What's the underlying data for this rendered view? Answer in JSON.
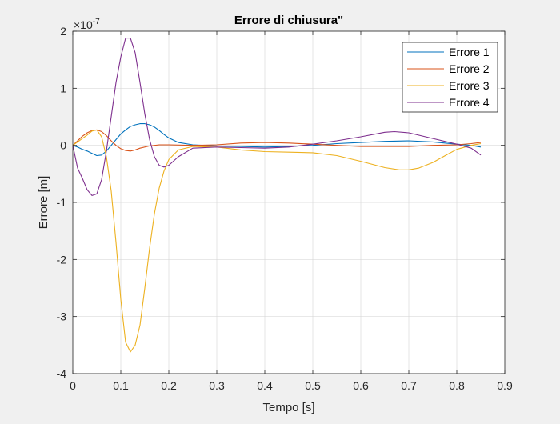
{
  "chart_data": {
    "type": "line",
    "title": "Errore di chiusura\"",
    "xlabel": "Tempo [s]",
    "ylabel": "Errore [m]",
    "exponent_label": "×10",
    "exponent_power": "-7",
    "xlim": [
      0,
      0.9
    ],
    "ylim": [
      -4,
      2
    ],
    "x_ticks": [
      0,
      0.1,
      0.2,
      0.3,
      0.4,
      0.5,
      0.6,
      0.7,
      0.8,
      0.9
    ],
    "x_tick_labels": [
      "0",
      "0.1",
      "0.2",
      "0.3",
      "0.4",
      "0.5",
      "0.6",
      "0.7",
      "0.8",
      "0.9"
    ],
    "y_ticks": [
      -4,
      -3,
      -2,
      -1,
      0,
      1,
      2
    ],
    "y_tick_labels": [
      "-4",
      "-3",
      "-2",
      "-1",
      "0",
      "1",
      "2"
    ],
    "grid": true,
    "legend_position": "top-right",
    "series": [
      {
        "name": "Errore 1",
        "color": "#0072BD",
        "points": [
          [
            0,
            0
          ],
          [
            0.01,
            -0.03
          ],
          [
            0.02,
            -0.07
          ],
          [
            0.03,
            -0.1
          ],
          [
            0.04,
            -0.14
          ],
          [
            0.05,
            -0.18
          ],
          [
            0.06,
            -0.17
          ],
          [
            0.07,
            -0.1
          ],
          [
            0.08,
            0
          ],
          [
            0.09,
            0.1
          ],
          [
            0.1,
            0.2
          ],
          [
            0.11,
            0.27
          ],
          [
            0.12,
            0.33
          ],
          [
            0.13,
            0.36
          ],
          [
            0.14,
            0.38
          ],
          [
            0.15,
            0.38
          ],
          [
            0.16,
            0.36
          ],
          [
            0.17,
            0.32
          ],
          [
            0.18,
            0.26
          ],
          [
            0.19,
            0.19
          ],
          [
            0.2,
            0.13
          ],
          [
            0.22,
            0.05
          ],
          [
            0.25,
            0.01
          ],
          [
            0.3,
            -0.01
          ],
          [
            0.35,
            -0.02
          ],
          [
            0.4,
            -0.03
          ],
          [
            0.45,
            -0.02
          ],
          [
            0.5,
            0
          ],
          [
            0.55,
            0.03
          ],
          [
            0.6,
            0.05
          ],
          [
            0.65,
            0.07
          ],
          [
            0.7,
            0.08
          ],
          [
            0.75,
            0.06
          ],
          [
            0.8,
            0.02
          ],
          [
            0.83,
            0
          ],
          [
            0.85,
            -0.03
          ]
        ]
      },
      {
        "name": "Errore 2",
        "color": "#D95319",
        "points": [
          [
            0,
            0
          ],
          [
            0.01,
            0.08
          ],
          [
            0.02,
            0.16
          ],
          [
            0.03,
            0.22
          ],
          [
            0.04,
            0.26
          ],
          [
            0.05,
            0.27
          ],
          [
            0.06,
            0.24
          ],
          [
            0.07,
            0.17
          ],
          [
            0.08,
            0.08
          ],
          [
            0.09,
            0
          ],
          [
            0.1,
            -0.06
          ],
          [
            0.11,
            -0.09
          ],
          [
            0.12,
            -0.1
          ],
          [
            0.13,
            -0.08
          ],
          [
            0.14,
            -0.05
          ],
          [
            0.16,
            -0.01
          ],
          [
            0.18,
            0.01
          ],
          [
            0.2,
            0.01
          ],
          [
            0.25,
            0
          ],
          [
            0.3,
            0.01
          ],
          [
            0.35,
            0.04
          ],
          [
            0.4,
            0.05
          ],
          [
            0.45,
            0.04
          ],
          [
            0.5,
            0.02
          ],
          [
            0.55,
            0
          ],
          [
            0.6,
            -0.02
          ],
          [
            0.65,
            -0.02
          ],
          [
            0.7,
            -0.02
          ],
          [
            0.75,
            0
          ],
          [
            0.8,
            0.01
          ],
          [
            0.83,
            0.03
          ],
          [
            0.85,
            0.05
          ]
        ]
      },
      {
        "name": "Errore 3",
        "color": "#EDB120",
        "points": [
          [
            0,
            0
          ],
          [
            0.01,
            0.06
          ],
          [
            0.02,
            0.12
          ],
          [
            0.03,
            0.18
          ],
          [
            0.04,
            0.25
          ],
          [
            0.05,
            0.27
          ],
          [
            0.06,
            0.15
          ],
          [
            0.07,
            -0.2
          ],
          [
            0.08,
            -0.8
          ],
          [
            0.09,
            -1.7
          ],
          [
            0.1,
            -2.7
          ],
          [
            0.11,
            -3.45
          ],
          [
            0.12,
            -3.62
          ],
          [
            0.13,
            -3.5
          ],
          [
            0.14,
            -3.15
          ],
          [
            0.15,
            -2.5
          ],
          [
            0.16,
            -1.8
          ],
          [
            0.17,
            -1.2
          ],
          [
            0.18,
            -0.75
          ],
          [
            0.19,
            -0.45
          ],
          [
            0.2,
            -0.25
          ],
          [
            0.22,
            -0.08
          ],
          [
            0.25,
            -0.02
          ],
          [
            0.3,
            -0.03
          ],
          [
            0.35,
            -0.08
          ],
          [
            0.4,
            -0.11
          ],
          [
            0.45,
            -0.12
          ],
          [
            0.5,
            -0.13
          ],
          [
            0.55,
            -0.18
          ],
          [
            0.6,
            -0.28
          ],
          [
            0.65,
            -0.39
          ],
          [
            0.68,
            -0.43
          ],
          [
            0.7,
            -0.43
          ],
          [
            0.72,
            -0.4
          ],
          [
            0.75,
            -0.3
          ],
          [
            0.78,
            -0.16
          ],
          [
            0.8,
            -0.07
          ],
          [
            0.83,
            0
          ],
          [
            0.85,
            0.03
          ]
        ]
      },
      {
        "name": "Errore 4",
        "color": "#7E2F8E",
        "points": [
          [
            0,
            0
          ],
          [
            0.01,
            -0.4
          ],
          [
            0.02,
            -0.58
          ],
          [
            0.03,
            -0.78
          ],
          [
            0.04,
            -0.88
          ],
          [
            0.05,
            -0.85
          ],
          [
            0.06,
            -0.6
          ],
          [
            0.07,
            -0.1
          ],
          [
            0.08,
            0.5
          ],
          [
            0.09,
            1.1
          ],
          [
            0.1,
            1.55
          ],
          [
            0.11,
            1.88
          ],
          [
            0.12,
            1.88
          ],
          [
            0.13,
            1.62
          ],
          [
            0.14,
            1.1
          ],
          [
            0.15,
            0.55
          ],
          [
            0.16,
            0.1
          ],
          [
            0.17,
            -0.2
          ],
          [
            0.18,
            -0.35
          ],
          [
            0.19,
            -0.38
          ],
          [
            0.2,
            -0.35
          ],
          [
            0.22,
            -0.2
          ],
          [
            0.25,
            -0.05
          ],
          [
            0.3,
            -0.03
          ],
          [
            0.35,
            -0.04
          ],
          [
            0.4,
            -0.05
          ],
          [
            0.45,
            -0.03
          ],
          [
            0.5,
            0.02
          ],
          [
            0.55,
            0.08
          ],
          [
            0.6,
            0.15
          ],
          [
            0.65,
            0.23
          ],
          [
            0.67,
            0.24
          ],
          [
            0.7,
            0.22
          ],
          [
            0.75,
            0.12
          ],
          [
            0.8,
            0.02
          ],
          [
            0.83,
            -0.05
          ],
          [
            0.85,
            -0.17
          ]
        ]
      }
    ]
  }
}
